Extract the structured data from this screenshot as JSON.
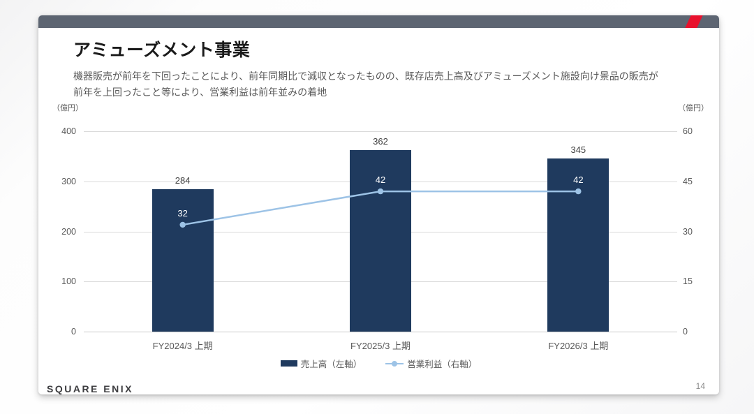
{
  "slide": {
    "title": "アミューズメント事業",
    "subtitle_line1": "機器販売が前年を下回ったことにより、前年同期比で減収となったものの、既存店売上高及びアミューズメント施設向け景品の販売が",
    "subtitle_line2": "前年を上回ったこと等により、営業利益は前年並みの着地",
    "logo_text": "SQUARE ENIX",
    "page_number": "14",
    "topbar_color": "#5d6572",
    "accent_color": "#e8112d"
  },
  "chart_data": {
    "type": "bar",
    "subtype": "bar+line dual-axis",
    "categories": [
      "FY2024/3 上期",
      "FY2025/3 上期",
      "FY2026/3 上期"
    ],
    "series": [
      {
        "name": "売上高（左軸）",
        "type": "bar",
        "axis": "left",
        "values": [
          284,
          362,
          345
        ],
        "color": "#1f3a5e"
      },
      {
        "name": "営業利益（右軸）",
        "type": "line",
        "axis": "right",
        "values": [
          32,
          42,
          42
        ],
        "color": "#9dc3e6"
      }
    ],
    "left_axis": {
      "unit": "（億円）",
      "min": 0,
      "max": 400,
      "ticks": [
        400,
        300,
        200,
        100,
        0
      ]
    },
    "right_axis": {
      "unit": "（億円）",
      "min": 0,
      "max": 60,
      "ticks": [
        60,
        45,
        30,
        15,
        0
      ]
    },
    "grid": true,
    "legend_position": "bottom",
    "colors": {
      "gridline": "#d9d9d9",
      "bar_value_label": "#404040",
      "line_value_label": "#ffffff",
      "tick_label": "#595959"
    }
  }
}
